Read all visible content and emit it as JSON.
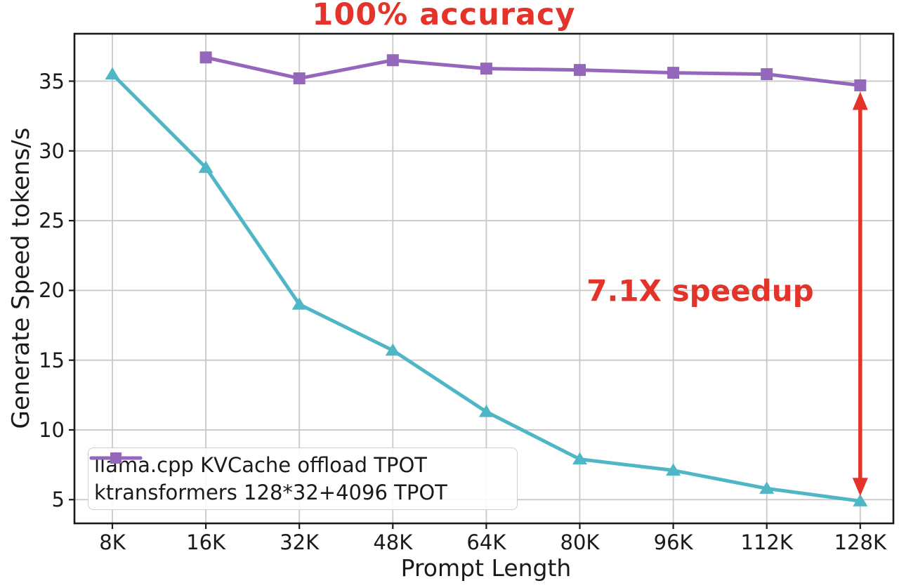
{
  "chart_data": {
    "type": "line",
    "title": "100% accuracy",
    "title_color": "#e3342c",
    "xlabel": "Prompt Length",
    "ylabel": "Generate Speed tokens/s",
    "categories": [
      "8K",
      "16K",
      "32K",
      "48K",
      "64K",
      "80K",
      "96K",
      "112K",
      "128K"
    ],
    "yticks": [
      5,
      10,
      15,
      20,
      25,
      30,
      35
    ],
    "ylim": [
      3.3,
      38.4
    ],
    "grid": true,
    "grid_color": "#c8c8c8",
    "spine_color": "#1a1a1a",
    "legend_position": "lower left",
    "series": [
      {
        "name": "llama.cpp KVCache offload TPOT",
        "color": "#4fb6c6",
        "marker": "triangle",
        "values": [
          35.5,
          28.8,
          19.0,
          15.7,
          11.3,
          7.9,
          7.1,
          5.8,
          4.9
        ]
      },
      {
        "name": "ktransformers 128*32+4096 TPOT",
        "color": "#9467bd",
        "marker": "square",
        "values": [
          null,
          36.7,
          35.2,
          36.5,
          35.9,
          35.8,
          35.6,
          35.5,
          34.7
        ]
      }
    ],
    "annotations": [
      {
        "id": "speedup-label",
        "text": "7.1X speedup",
        "color": "#e3342c"
      },
      {
        "id": "speedup-arrow",
        "type": "vertical-double-arrow",
        "x_category": "128K",
        "from_value": 34.7,
        "to_value": 4.9,
        "color": "#e3342c"
      }
    ]
  }
}
